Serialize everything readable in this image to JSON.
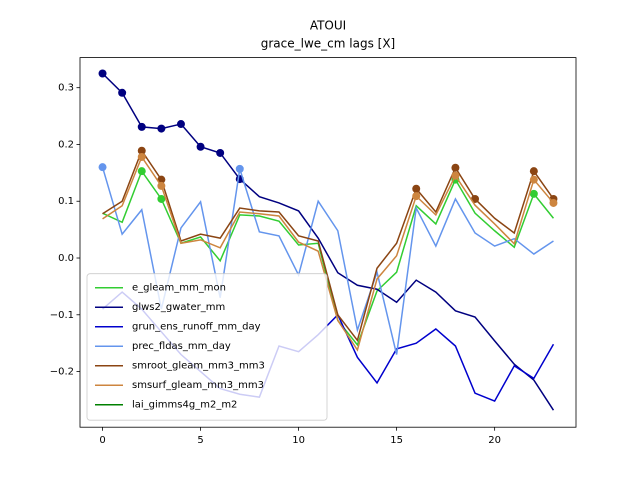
{
  "chart_data": {
    "type": "line",
    "title": "ATOUI",
    "subtitle": "grace_lwe_cm lags [X]",
    "x": [
      0,
      1,
      2,
      3,
      4,
      5,
      6,
      7,
      8,
      9,
      10,
      11,
      12,
      13,
      14,
      15,
      16,
      17,
      18,
      19,
      20,
      21,
      22,
      23
    ],
    "xlim": [
      -1.15,
      24.15
    ],
    "xticks": [
      0,
      5,
      10,
      15,
      20
    ],
    "ylim": [
      -0.298,
      0.353
    ],
    "yticks": [
      {
        "value": -0.2,
        "label": "−0.2"
      },
      {
        "value": -0.1,
        "label": "−0.1"
      },
      {
        "value": 0,
        "label": "0.0"
      },
      0.1,
      0.2,
      0.3
    ],
    "legend": "lower left",
    "series": [
      {
        "name": "e_gleam_mm_mon",
        "color": "#32cd32",
        "values": [
          0.079,
          0.063,
          0.153,
          0.104,
          0.026,
          0.037,
          -0.005,
          0.076,
          0.074,
          0.065,
          0.023,
          0.026,
          -0.11,
          -0.153,
          -0.058,
          -0.025,
          0.092,
          0.06,
          0.138,
          0.079,
          0.048,
          0.019,
          0.113,
          0.07
        ],
        "markers": [
          2,
          3,
          18,
          22
        ]
      },
      {
        "name": "glws2_gwater_mm",
        "color": "#000080",
        "values": [
          0.325,
          0.291,
          0.231,
          0.228,
          0.236,
          0.196,
          0.185,
          0.139,
          0.108,
          0.097,
          0.083,
          0.035,
          -0.026,
          -0.048,
          -0.055,
          -0.078,
          -0.039,
          -0.06,
          -0.093,
          -0.104,
          -0.146,
          -0.187,
          -0.215,
          -0.268
        ],
        "markers": [
          0,
          1,
          2,
          3,
          4,
          5,
          6,
          7
        ]
      },
      {
        "name": "grun_ens_runoff_mm_day",
        "color": "#0000cd",
        "values": [
          -0.09,
          -0.06,
          -0.09,
          -0.13,
          -0.17,
          -0.2,
          -0.23,
          -0.24,
          -0.245,
          -0.155,
          -0.165,
          -0.135,
          -0.1,
          -0.175,
          -0.22,
          -0.16,
          -0.15,
          -0.125,
          -0.155,
          -0.238,
          -0.252,
          -0.19,
          -0.212,
          -0.152
        ],
        "markers": []
      },
      {
        "name": "prec_fldas_mm_day",
        "color": "#6495ed",
        "values": [
          0.16,
          0.042,
          0.085,
          -0.09,
          0.053,
          0.099,
          -0.07,
          0.157,
          0.046,
          0.039,
          -0.03,
          0.1,
          0.048,
          -0.127,
          -0.025,
          -0.17,
          0.088,
          0.021,
          0.104,
          0.044,
          0.021,
          0.034,
          0.007,
          0.03
        ],
        "markers": [
          0,
          7
        ]
      },
      {
        "name": "smroot_gleam_mm3_mm3",
        "color": "#8b4513",
        "values": [
          0.078,
          0.1,
          0.189,
          0.138,
          0.03,
          0.042,
          0.035,
          0.088,
          0.083,
          0.081,
          0.039,
          0.03,
          -0.1,
          -0.145,
          -0.018,
          0.026,
          0.122,
          0.081,
          0.159,
          0.104,
          0.07,
          0.044,
          0.153,
          0.104
        ],
        "markers": [
          2,
          3,
          16,
          18,
          19,
          22,
          23
        ]
      },
      {
        "name": "smsurf_gleam_mm3_mm3",
        "color": "#cd853f",
        "values": [
          0.069,
          0.092,
          0.178,
          0.127,
          0.026,
          0.032,
          0.018,
          0.081,
          0.078,
          0.074,
          0.028,
          0.012,
          -0.11,
          -0.162,
          -0.037,
          0.004,
          0.109,
          0.076,
          0.145,
          0.093,
          0.06,
          0.025,
          0.138,
          0.097
        ],
        "markers": [
          2,
          3,
          16,
          18,
          22,
          23
        ]
      },
      {
        "name": "lai_gimms4g_m2_m2",
        "color": "#008000",
        "values": [
          null,
          null,
          null,
          null,
          null,
          null,
          null,
          null,
          null,
          null,
          null,
          null,
          null,
          null,
          null,
          null,
          null,
          null,
          null,
          null,
          null,
          null,
          null,
          null
        ],
        "markers": []
      }
    ]
  }
}
